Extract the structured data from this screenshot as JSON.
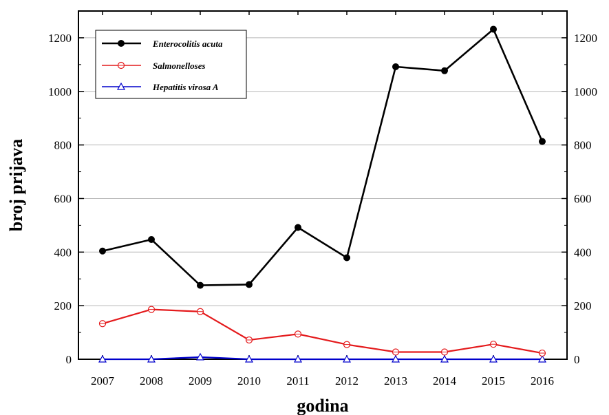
{
  "chart_data": {
    "type": "line",
    "xlabel": "godina",
    "ylabel": "broj prijava",
    "x": [
      "2007",
      "2008",
      "2009",
      "2010",
      "2011",
      "2012",
      "2013",
      "2014",
      "2015",
      "2016"
    ],
    "yticks": [
      "0",
      "200",
      "400",
      "600",
      "800",
      "1000",
      "1200"
    ],
    "ylim": [
      0,
      1300
    ],
    "grid": "horizontal",
    "legend_position": "top-left",
    "secondary_y_axis": true,
    "series": [
      {
        "name": "Enterocolitis acuta",
        "color": "#000000",
        "marker": "filled-circle",
        "values": [
          404,
          447,
          276,
          279,
          492,
          379,
          1092,
          1077,
          1232,
          813
        ]
      },
      {
        "name": "Salmonelloses",
        "color": "#e41a1c",
        "marker": "open-circle",
        "values": [
          133,
          186,
          178,
          72,
          94,
          55,
          27,
          27,
          56,
          23
        ]
      },
      {
        "name": "Hepatitis virosa A",
        "color": "#0000cc",
        "marker": "open-triangle",
        "values": [
          0,
          0,
          8,
          0,
          0,
          0,
          0,
          0,
          0,
          0
        ]
      }
    ]
  }
}
